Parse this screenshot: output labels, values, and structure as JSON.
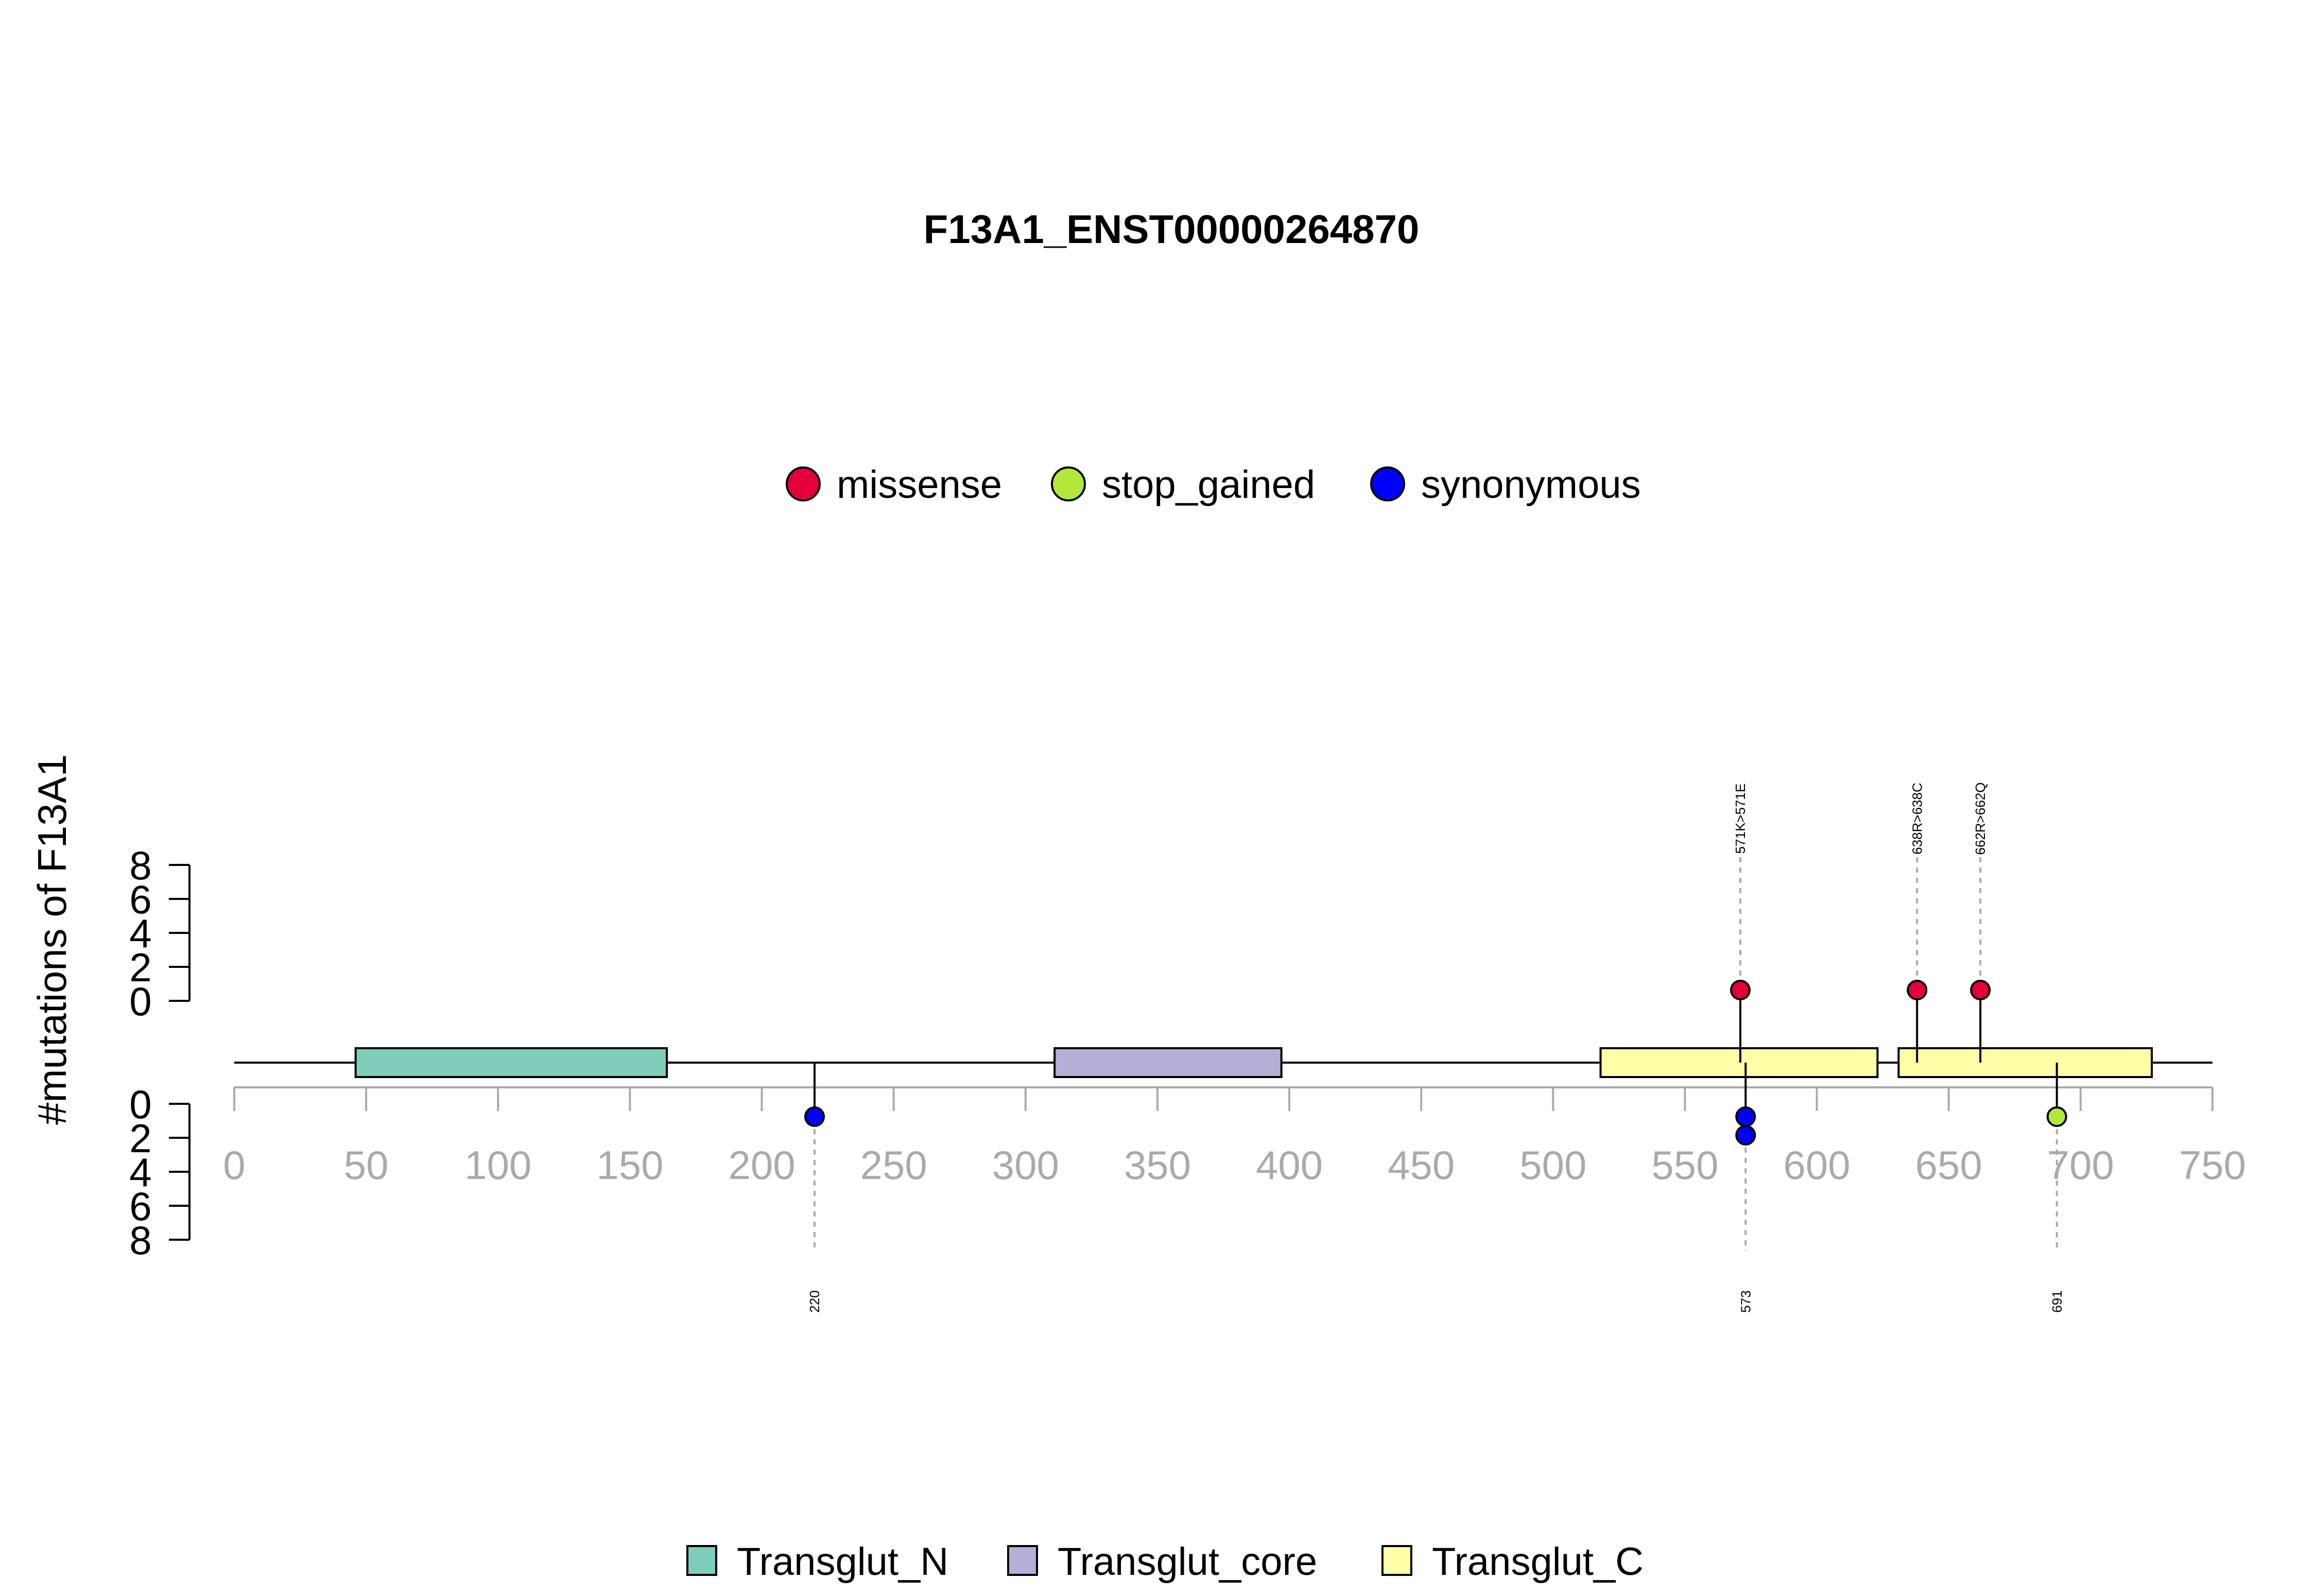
{
  "chart_data": {
    "type": "lollipop",
    "title": "F13A1_ENST00000264870",
    "ylabel": "#mutations of F13A1",
    "xlim": [
      0,
      750
    ],
    "x_ticks": [
      0,
      50,
      100,
      150,
      200,
      250,
      300,
      350,
      400,
      450,
      500,
      550,
      600,
      650,
      700,
      750
    ],
    "y_ticks": [
      0,
      2,
      4,
      6,
      8
    ],
    "legend_top": {
      "placement": "top-center",
      "items": [
        {
          "name": "missense",
          "color": "#e4003a"
        },
        {
          "name": "stop_gained",
          "color": "#b3e83b"
        },
        {
          "name": "synonymous",
          "color": "#0000ff"
        }
      ]
    },
    "domains": [
      {
        "name": "Transglut_N",
        "start": 46,
        "end": 164,
        "color": "#7fcdbb"
      },
      {
        "name": "Transglut_core",
        "start": 311,
        "end": 397,
        "color": "#b3afd6"
      },
      {
        "name": "Transglut_C",
        "start": 518,
        "end": 623,
        "color": "#ffffa8"
      },
      {
        "name": "Transglut_C",
        "start": 631,
        "end": 727,
        "color": "#ffffa8"
      }
    ],
    "legend_bottom": {
      "placement": "bottom-center",
      "items": [
        {
          "name": "Transglut_N",
          "color": "#7fcdbb"
        },
        {
          "name": "Transglut_core",
          "color": "#b3afd6"
        },
        {
          "name": "Transglut_C",
          "color": "#ffffa8"
        }
      ]
    },
    "mutations_top": [
      {
        "position": 571,
        "label": "571K>571E",
        "type": "missense",
        "count": 1
      },
      {
        "position": 638,
        "label": "638R>638C",
        "type": "missense",
        "count": 1
      },
      {
        "position": 662,
        "label": "662R>662Q",
        "type": "missense",
        "count": 1
      }
    ],
    "mutations_bottom": [
      {
        "position": 220,
        "label": "220",
        "type": "synonymous",
        "count": 1
      },
      {
        "position": 573,
        "label": "573",
        "type": "synonymous",
        "count": 2
      },
      {
        "position": 691,
        "label": "691",
        "type": "stop_gained",
        "count": 1
      }
    ]
  }
}
